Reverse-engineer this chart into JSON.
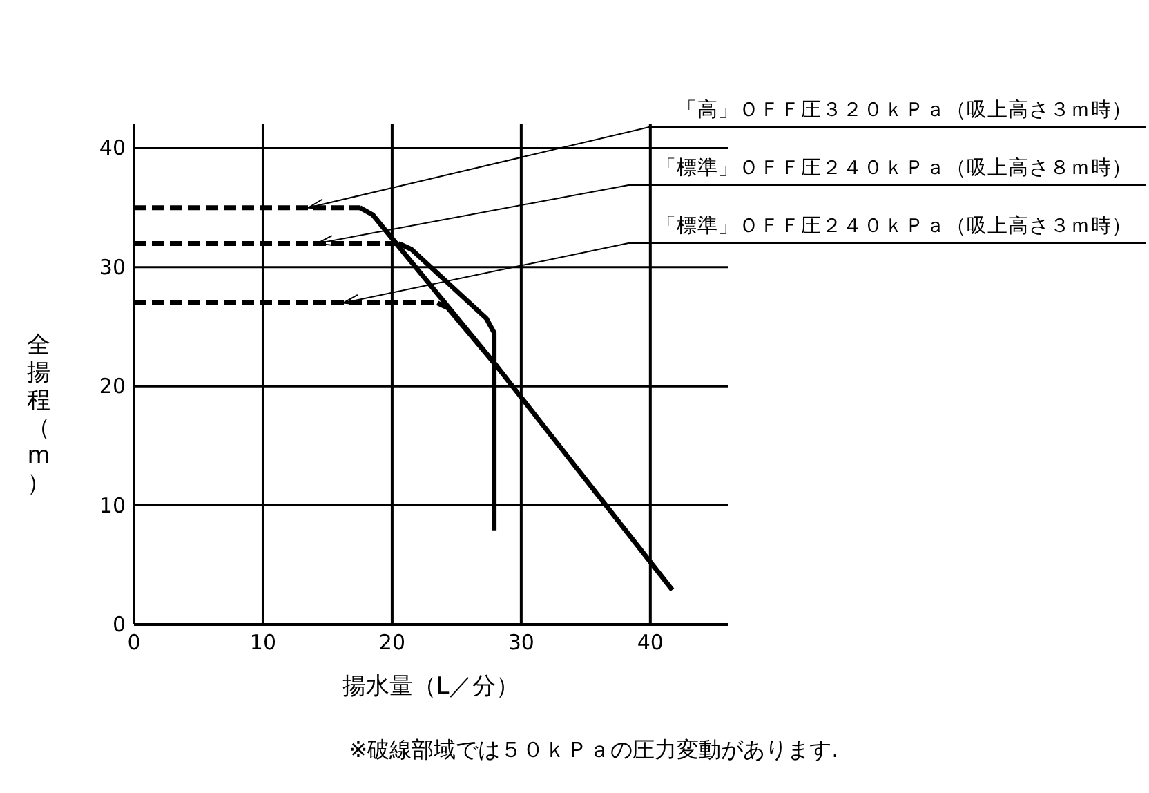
{
  "chart_data": {
    "type": "line",
    "xlabel": "揚水量（L／分）",
    "ylabel": "全揚程（m）",
    "xlim": [
      0,
      46
    ],
    "ylim": [
      0,
      42
    ],
    "xticks": [
      0,
      10,
      20,
      30,
      40
    ],
    "yticks": [
      0,
      10,
      20,
      30,
      40
    ],
    "grid": true,
    "marker": "none",
    "series": [
      {
        "color": "#000000",
        "line_style": "dashed",
        "x": [
          0,
          17.5
        ],
        "values": [
          35,
          35
        ]
      },
      {
        "color": "#000000",
        "line_style": "solid",
        "x": [
          17.5,
          18.5,
          28.1,
          41.7
        ],
        "values": [
          35,
          34.4,
          21.7,
          2.9
        ]
      },
      {
        "color": "#000000",
        "line_style": "dashed",
        "x": [
          0,
          20.5
        ],
        "values": [
          32,
          32
        ]
      },
      {
        "color": "#000000",
        "line_style": "solid",
        "x": [
          20.5,
          21.5,
          27.3,
          27.9,
          27.9
        ],
        "values": [
          32,
          31.5,
          25.7,
          24.5,
          7.9
        ]
      },
      {
        "color": "#000000",
        "line_style": "dashed",
        "x": [
          0,
          23.5
        ],
        "values": [
          27,
          27
        ]
      },
      {
        "color": "#000000",
        "line_style": "solid",
        "x": [
          23.5,
          24.3,
          28.1
        ],
        "values": [
          27,
          26.6,
          21.7
        ]
      }
    ],
    "annotations": [
      {
        "text": "「高」ＯＦＦ圧３２０ｋＰａ（吸上高さ３ｍ時）",
        "x": 13.5,
        "y": 35
      },
      {
        "text": "「標準」ＯＦＦ圧２４０ｋＰａ（吸上高さ８ｍ時）",
        "x": 14.2,
        "y": 32
      },
      {
        "text": "「標準」ＯＦＦ圧２４０ｋＰａ（吸上高さ３ｍ時）",
        "x": 16.2,
        "y": 27
      },
      "※破線部域では５０ｋＰａの圧力変動があります."
    ]
  }
}
